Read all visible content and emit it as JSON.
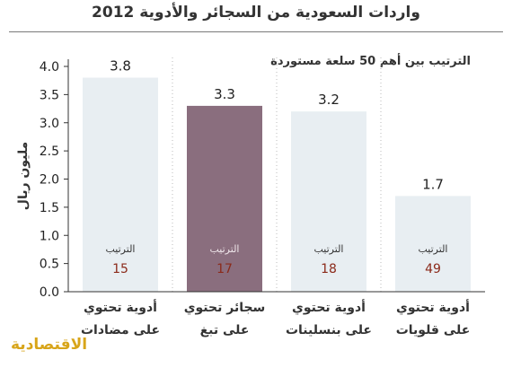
{
  "header": {
    "title": "واردات السعودية من السجائر والأدوية 2012",
    "subtitle": "الترتيب بين أهم 50 سلعة مستوردة"
  },
  "branding": {
    "logo_text": "الاقتصادية"
  },
  "colors": {
    "bar": "#e8eef2",
    "highlight": "#8a6e7e",
    "rank_number": "#8b2a1a",
    "axis": "#333333"
  },
  "chart_data": {
    "type": "bar",
    "ylabel": "مليون ريال",
    "ylim": [
      0,
      4.0
    ],
    "yticks": [
      "0.0",
      "0.5",
      "1.0",
      "1.5",
      "2.0",
      "2.5",
      "3.0",
      "3.5",
      "4.0"
    ],
    "categories": [
      {
        "line1": "أدوية تحتوي",
        "line2": "على مضادات"
      },
      {
        "line1": "سجائر تحتوي",
        "line2": "على تبغ"
      },
      {
        "line1": "أدوية تحتوي",
        "line2": "على بنسلينات"
      },
      {
        "line1": "أدوية تحتوي",
        "line2": "على قلويات"
      }
    ],
    "values": [
      3.8,
      3.3,
      3.2,
      1.7
    ],
    "value_labels": [
      "3.8",
      "3.3",
      "3.2",
      "1.7"
    ],
    "highlight_index": 1,
    "rank_label": "الترتيب",
    "ranks": [
      "15",
      "17",
      "18",
      "49"
    ]
  }
}
